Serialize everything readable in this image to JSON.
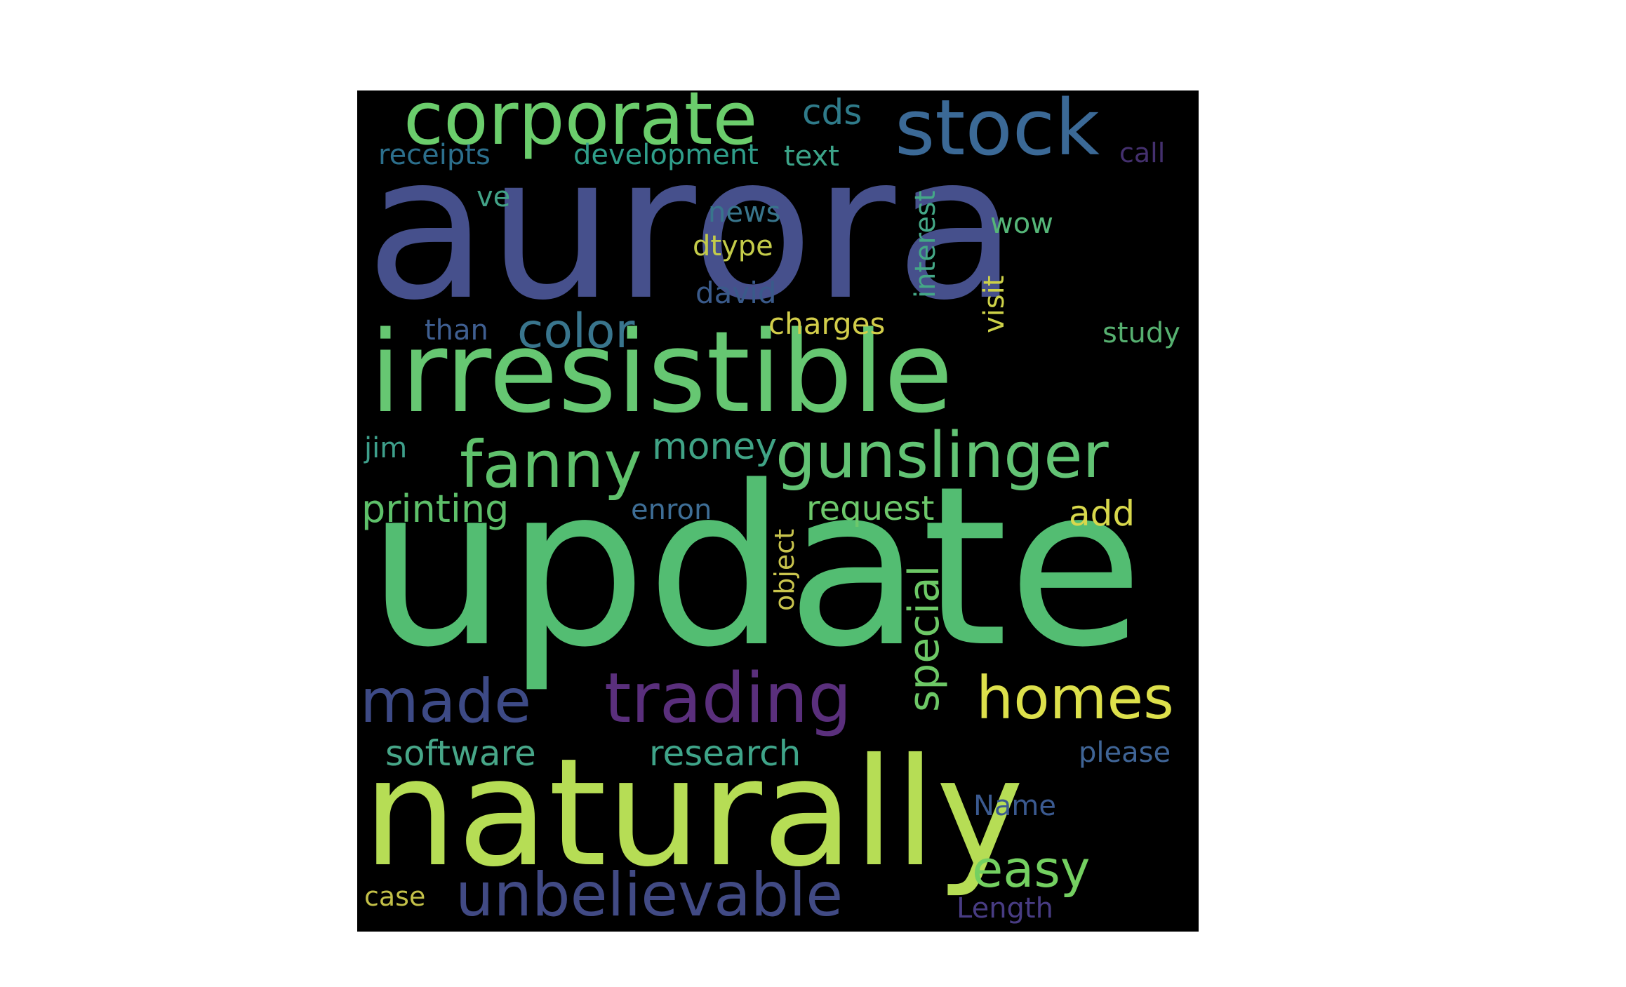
{
  "word_cloud": {
    "background_color": "#000000",
    "words": [
      {
        "text": "aurora",
        "color": "#46508c"
      },
      {
        "text": "update",
        "color": "#53bd72"
      },
      {
        "text": "naturally",
        "color": "#b6dd55"
      },
      {
        "text": "irresistible",
        "color": "#66c772"
      },
      {
        "text": "corporate",
        "color": "#6bcd6c"
      },
      {
        "text": "stock",
        "color": "#3b6996"
      },
      {
        "text": "gunslinger",
        "color": "#62c374"
      },
      {
        "text": "fanny",
        "color": "#5fc16c"
      },
      {
        "text": "unbelievable",
        "color": "#414a84"
      },
      {
        "text": "trading",
        "color": "#5a2f7c"
      },
      {
        "text": "homes",
        "color": "#dde04b"
      },
      {
        "text": "made",
        "color": "#3d4a86"
      },
      {
        "text": "easy",
        "color": "#74d061"
      },
      {
        "text": "color",
        "color": "#39758d"
      },
      {
        "text": "special",
        "color": "#6dc866"
      },
      {
        "text": "software",
        "color": "#47a688"
      },
      {
        "text": "research",
        "color": "#3fa489"
      },
      {
        "text": "printing",
        "color": "#5ec06a"
      },
      {
        "text": "request",
        "color": "#6dc86b"
      },
      {
        "text": "money",
        "color": "#40a386"
      },
      {
        "text": "add",
        "color": "#d8d84c"
      },
      {
        "text": "cds",
        "color": "#2f7b8a"
      },
      {
        "text": "receipts",
        "color": "#2c6f8c"
      },
      {
        "text": "development",
        "color": "#2f9e8a"
      },
      {
        "text": "text",
        "color": "#3ca489"
      },
      {
        "text": "call",
        "color": "#44306e"
      },
      {
        "text": "ve",
        "color": "#42a287"
      },
      {
        "text": "news",
        "color": "#38758c"
      },
      {
        "text": "dtype",
        "color": "#c4cc4a"
      },
      {
        "text": "interest",
        "color": "#44a887"
      },
      {
        "text": "wow",
        "color": "#55b678"
      },
      {
        "text": "visit",
        "color": "#cdd148"
      },
      {
        "text": "david",
        "color": "#3a5a8a"
      },
      {
        "text": "than",
        "color": "#3f5f91"
      },
      {
        "text": "charges",
        "color": "#d2cd4a"
      },
      {
        "text": "study",
        "color": "#56b070"
      },
      {
        "text": "jim",
        "color": "#3e9f8b"
      },
      {
        "text": "enron",
        "color": "#3e6e96"
      },
      {
        "text": "object",
        "color": "#c9c44d"
      },
      {
        "text": "please",
        "color": "#3f6495"
      },
      {
        "text": "Name",
        "color": "#3b5a90"
      },
      {
        "text": "case",
        "color": "#c3c048"
      },
      {
        "text": "Length",
        "color": "#483c83"
      }
    ]
  }
}
